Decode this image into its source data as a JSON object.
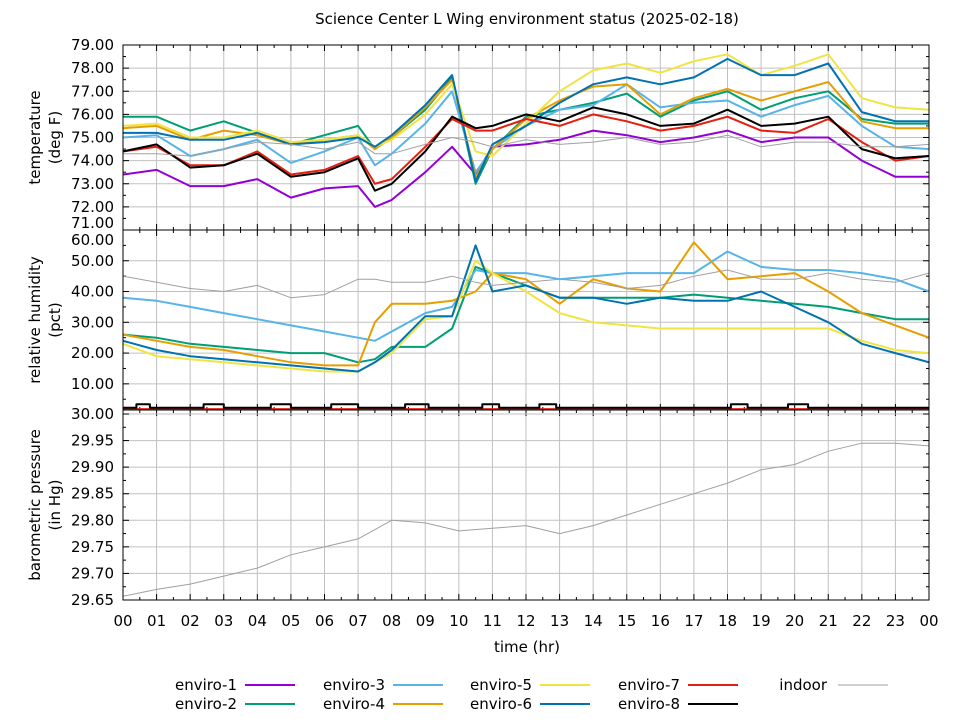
{
  "title": "Science Center L Wing environment status (2025-02-18)",
  "legend_placement": "bottom",
  "chart_data": [
    {
      "type": "line",
      "panel": "temperature",
      "ylabel": [
        "temperature",
        "(deg F)"
      ],
      "xlabel": "time (hr)",
      "x_tick_labels": [
        "00",
        "01",
        "02",
        "03",
        "04",
        "05",
        "06",
        "07",
        "08",
        "09",
        "10",
        "11",
        "12",
        "13",
        "14",
        "15",
        "16",
        "17",
        "18",
        "19",
        "20",
        "21",
        "22",
        "23",
        "00"
      ],
      "xlim": [
        0,
        24
      ],
      "ylim": [
        71,
        79
      ],
      "y_ticks": [
        71,
        72,
        73,
        74,
        75,
        76,
        77,
        78,
        79
      ],
      "y_tick_labels": [
        "71.00",
        "72.00",
        "73.00",
        "74.00",
        "75.00",
        "76.00",
        "77.00",
        "78.00",
        "79.00"
      ],
      "grid": true,
      "x": [
        0,
        1,
        2,
        3,
        4,
        5,
        6,
        7,
        7.5,
        8,
        9,
        9.8,
        10.5,
        11,
        12,
        13,
        14,
        15,
        16,
        17,
        18,
        19,
        20,
        21,
        22,
        23,
        24
      ],
      "series": [
        {
          "name": "enviro-1",
          "color": "#9400d3",
          "values": [
            73.4,
            73.6,
            72.9,
            72.9,
            73.2,
            72.4,
            72.8,
            72.9,
            72.0,
            72.3,
            73.5,
            74.6,
            73.4,
            74.6,
            74.7,
            74.9,
            75.3,
            75.1,
            74.8,
            75.0,
            75.3,
            74.8,
            75.0,
            75.0,
            74.0,
            73.3,
            73.3
          ]
        },
        {
          "name": "enviro-2",
          "color": "#009e73",
          "values": [
            75.9,
            75.9,
            75.3,
            75.7,
            75.2,
            74.7,
            75.1,
            75.5,
            74.5,
            75.0,
            76.2,
            77.6,
            73.0,
            74.5,
            75.9,
            76.2,
            76.5,
            76.9,
            75.9,
            76.6,
            77.0,
            76.2,
            76.7,
            77.0,
            75.8,
            75.6,
            75.6
          ]
        },
        {
          "name": "enviro-3",
          "color": "#56b4e9",
          "values": [
            75.0,
            75.1,
            74.2,
            74.5,
            74.9,
            73.9,
            74.4,
            75.0,
            73.8,
            74.3,
            75.6,
            77.0,
            73.5,
            74.5,
            75.5,
            76.2,
            76.4,
            77.3,
            76.3,
            76.5,
            76.6,
            75.9,
            76.4,
            76.8,
            75.5,
            74.6,
            74.5
          ]
        },
        {
          "name": "enviro-4",
          "color": "#e69f00",
          "values": [
            75.4,
            75.5,
            74.9,
            75.3,
            75.1,
            74.7,
            74.9,
            75.1,
            74.5,
            75.0,
            76.3,
            77.5,
            73.3,
            74.5,
            75.8,
            76.6,
            77.2,
            77.3,
            76.0,
            76.7,
            77.1,
            76.6,
            77.0,
            77.4,
            75.7,
            75.4,
            75.4
          ]
        },
        {
          "name": "enviro-5",
          "color": "#f0e442",
          "values": [
            75.5,
            75.6,
            75.0,
            75.0,
            75.3,
            74.8,
            74.9,
            75.1,
            74.6,
            74.9,
            76.0,
            77.3,
            74.4,
            74.2,
            75.6,
            77.0,
            77.9,
            78.2,
            77.8,
            78.3,
            78.6,
            77.7,
            78.1,
            78.6,
            76.7,
            76.3,
            76.2
          ]
        },
        {
          "name": "enviro-6",
          "color": "#0072b2",
          "values": [
            75.2,
            75.2,
            74.9,
            74.9,
            75.2,
            74.7,
            74.8,
            75.0,
            74.6,
            75.1,
            76.4,
            77.7,
            73.1,
            74.7,
            75.5,
            76.5,
            77.3,
            77.6,
            77.3,
            77.6,
            78.4,
            77.7,
            77.7,
            78.2,
            76.1,
            75.7,
            75.7
          ]
        },
        {
          "name": "enviro-7",
          "color": "#e51e10",
          "values": [
            74.4,
            74.6,
            73.8,
            73.8,
            74.4,
            73.4,
            73.6,
            74.2,
            73.0,
            73.2,
            74.6,
            75.8,
            75.3,
            75.3,
            75.8,
            75.5,
            76.0,
            75.7,
            75.3,
            75.5,
            75.9,
            75.3,
            75.2,
            75.8,
            74.8,
            74.0,
            74.2
          ]
        },
        {
          "name": "enviro-8",
          "color": "#000000",
          "values": [
            74.4,
            74.7,
            73.7,
            73.8,
            74.3,
            73.3,
            73.5,
            74.1,
            72.7,
            73.0,
            74.4,
            75.9,
            75.4,
            75.5,
            76.0,
            75.7,
            76.3,
            76.0,
            75.5,
            75.6,
            76.2,
            75.5,
            75.6,
            75.9,
            74.5,
            74.1,
            74.2
          ]
        },
        {
          "name": "indoor",
          "color": "#a0a0a0",
          "values": [
            74.3,
            74.3,
            74.2,
            74.5,
            74.8,
            74.7,
            74.5,
            74.8,
            74.3,
            74.3,
            74.7,
            75.0,
            74.8,
            74.6,
            74.9,
            74.7,
            74.8,
            75.0,
            74.7,
            74.8,
            75.1,
            74.6,
            74.8,
            74.8,
            74.6,
            74.6,
            74.7
          ]
        }
      ]
    },
    {
      "type": "line",
      "panel": "humidity",
      "ylabel": [
        "relative humidity",
        "(pct)"
      ],
      "xlim": [
        0,
        24
      ],
      "ylim": [
        1.5,
        60
      ],
      "y_ticks": [
        10,
        20,
        30,
        40,
        50,
        60
      ],
      "y_tick_labels": [
        "10.00",
        "20.00",
        "30.00",
        "40.00",
        "50.00",
        "60.00"
      ],
      "grid": true,
      "x": [
        0,
        1,
        2,
        3,
        4,
        5,
        6,
        7,
        7.5,
        8,
        9,
        9.8,
        10.5,
        11,
        12,
        13,
        14,
        15,
        16,
        17,
        18,
        19,
        20,
        21,
        22,
        23,
        24
      ],
      "series": [
        {
          "name": "enviro-1",
          "color": "#9400d3",
          "x": [
            0,
            24
          ],
          "values": [
            1.2,
            1.2
          ]
        },
        {
          "name": "enviro-2",
          "color": "#009e73",
          "values": [
            26,
            25,
            23,
            22,
            21,
            20,
            20,
            17,
            18,
            22,
            22,
            28,
            48,
            46,
            42,
            38,
            38,
            38,
            38,
            39,
            38,
            37,
            36,
            35,
            33,
            31,
            31
          ]
        },
        {
          "name": "enviro-3",
          "color": "#56b4e9",
          "values": [
            38,
            37,
            35,
            33,
            31,
            29,
            27,
            25,
            24,
            27,
            33,
            35,
            47,
            46,
            46,
            44,
            45,
            46,
            46,
            46,
            53,
            48,
            47,
            47,
            46,
            44,
            40
          ]
        },
        {
          "name": "enviro-4",
          "color": "#e69f00",
          "values": [
            26,
            24,
            22,
            21,
            19,
            17,
            16,
            16,
            30,
            36,
            36,
            37,
            40,
            46,
            44,
            36,
            44,
            41,
            40,
            56,
            44,
            45,
            46,
            40,
            33,
            29,
            25
          ]
        },
        {
          "name": "enviro-5",
          "color": "#f0e442",
          "values": [
            23,
            19,
            18,
            17,
            16,
            15,
            14,
            14,
            17,
            20,
            31,
            32,
            50,
            46,
            40,
            33,
            30,
            29,
            28,
            28,
            28,
            28,
            28,
            28,
            24,
            21,
            20
          ]
        },
        {
          "name": "enviro-6",
          "color": "#0072b2",
          "values": [
            24,
            21,
            19,
            18,
            17,
            16,
            15,
            14,
            17,
            21,
            32,
            32,
            55,
            40,
            42,
            38,
            38,
            36,
            38,
            37,
            37,
            40,
            35,
            30,
            23,
            20,
            17
          ]
        },
        {
          "name": "enviro-7",
          "color": "#e51e10",
          "x": [
            0,
            24
          ],
          "values": [
            1.8,
            1.8
          ]
        },
        {
          "name": "enviro-8",
          "color": "#000000",
          "x": [
            0,
            0.4,
            0.4,
            0.8,
            0.8,
            2.4,
            2.4,
            3.0,
            3.0,
            4.4,
            4.4,
            5.0,
            5.0,
            6.2,
            6.2,
            7.0,
            7.0,
            8.4,
            8.4,
            9.1,
            9.1,
            10.7,
            10.7,
            11.2,
            11.2,
            12.4,
            12.4,
            12.9,
            12.9,
            18.1,
            18.1,
            18.6,
            18.6,
            19.8,
            19.8,
            20.4,
            20.4,
            24
          ],
          "values": [
            2.2,
            2.2,
            3.4,
            3.4,
            2.2,
            2.2,
            3.4,
            3.4,
            2.2,
            2.2,
            3.4,
            3.4,
            2.2,
            2.2,
            3.4,
            3.4,
            2.2,
            2.2,
            3.4,
            3.4,
            2.2,
            2.2,
            3.4,
            3.4,
            2.2,
            2.2,
            3.4,
            3.4,
            2.2,
            2.2,
            3.4,
            3.4,
            2.2,
            2.2,
            3.4,
            3.4,
            2.2,
            2.2
          ]
        },
        {
          "name": "indoor",
          "color": "#a0a0a0",
          "values": [
            45,
            43,
            41,
            40,
            42,
            38,
            39,
            44,
            44,
            43,
            43,
            45,
            43,
            42,
            43,
            44,
            43,
            41,
            42,
            45,
            47,
            44,
            44,
            46,
            44,
            43,
            46
          ]
        }
      ]
    },
    {
      "type": "line",
      "panel": "pressure",
      "ylabel": [
        "barometric pressure",
        "(in Hg)"
      ],
      "xlim": [
        0,
        24
      ],
      "ylim": [
        29.65,
        30.0
      ],
      "y_ticks": [
        29.65,
        29.7,
        29.75,
        29.8,
        29.85,
        29.9,
        29.95,
        30.0
      ],
      "y_tick_labels": [
        "29.65",
        "29.70",
        "29.75",
        "29.80",
        "29.85",
        "29.90",
        "29.95",
        "30.00"
      ],
      "grid": true,
      "x": [
        0,
        1,
        2,
        3,
        4,
        5,
        6,
        7,
        8,
        9,
        10,
        11,
        12,
        13,
        14,
        15,
        16,
        17,
        18,
        19,
        20,
        21,
        22,
        23,
        24
      ],
      "series": [
        {
          "name": "indoor",
          "color": "#a0a0a0",
          "values": [
            29.657,
            29.67,
            29.68,
            29.695,
            29.71,
            29.735,
            29.75,
            29.765,
            29.8,
            29.795,
            29.78,
            29.785,
            29.79,
            29.775,
            29.79,
            29.81,
            29.83,
            29.85,
            29.87,
            29.895,
            29.905,
            29.93,
            29.945,
            29.945,
            29.94
          ]
        }
      ]
    }
  ],
  "legend": [
    {
      "label": "enviro-1",
      "color": "#9400d3"
    },
    {
      "label": "enviro-2",
      "color": "#009e73"
    },
    {
      "label": "enviro-3",
      "color": "#56b4e9"
    },
    {
      "label": "enviro-4",
      "color": "#e69f00"
    },
    {
      "label": "enviro-5",
      "color": "#f0e442"
    },
    {
      "label": "enviro-6",
      "color": "#0072b2"
    },
    {
      "label": "enviro-7",
      "color": "#e51e10"
    },
    {
      "label": "enviro-8",
      "color": "#000000"
    },
    {
      "label": "indoor",
      "color": "#a0a0a0"
    }
  ]
}
